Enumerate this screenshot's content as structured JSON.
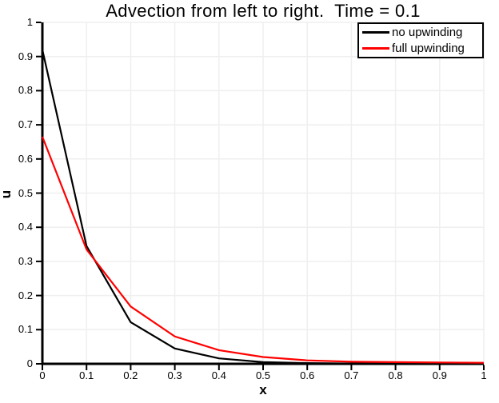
{
  "chart_data": {
    "type": "line",
    "title": "Advection from left to right.  Time = 0.1",
    "xlabel": "x",
    "ylabel": "u",
    "xlim": [
      0,
      1
    ],
    "ylim": [
      0,
      1
    ],
    "grid": true,
    "legend_position": "top-right",
    "x": [
      0,
      0.1,
      0.2,
      0.3,
      0.4,
      0.5,
      0.6,
      0.7,
      0.8,
      0.9,
      1.0
    ],
    "series": [
      {
        "name": "no upwinding",
        "color": "#000000",
        "values": [
          0.92,
          0.345,
          0.122,
          0.045,
          0.016,
          0.005,
          0.002,
          0.001,
          0.0005,
          0.0003,
          0.0002
        ]
      },
      {
        "name": "full upwinding",
        "color": "#ff0000",
        "values": [
          0.665,
          0.335,
          0.168,
          0.08,
          0.04,
          0.02,
          0.01,
          0.006,
          0.005,
          0.004,
          0.003
        ]
      }
    ],
    "x_tick_labels": [
      "0",
      "0.1",
      "0.2",
      "0.3",
      "0.4",
      "0.5",
      "0.6",
      "0.7",
      "0.8",
      "0.9",
      "1"
    ],
    "y_tick_labels": [
      "0",
      "0.1",
      "0.2",
      "0.3",
      "0.4",
      "0.5",
      "0.6",
      "0.7",
      "0.8",
      "0.9",
      "1"
    ]
  },
  "colors": {
    "axis": "#000000",
    "grid": "#efefef",
    "background": "#ffffff"
  }
}
